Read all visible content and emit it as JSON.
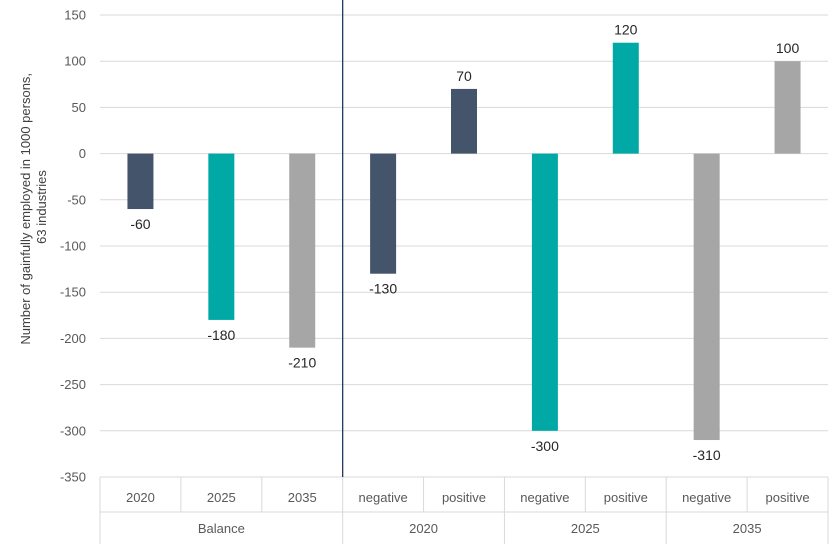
{
  "chart_data": {
    "type": "bar",
    "ylabel_lines": [
      "Number of gainfully employed in 1000 persons,",
      "63 industries"
    ],
    "ylim": [
      -350,
      150
    ],
    "ytick_step": 50,
    "grid": true,
    "legend": "none",
    "groups": [
      {
        "name": "Balance",
        "categories": [
          "2020",
          "2025",
          "2035"
        ],
        "values": [
          -60,
          -180,
          -210
        ],
        "colors": [
          "#44546A",
          "#00A9A6",
          "#A6A6A6"
        ]
      },
      {
        "name": "2020",
        "categories": [
          "negative",
          "positive"
        ],
        "values": [
          -130,
          70
        ],
        "colors": [
          "#44546A",
          "#44546A"
        ]
      },
      {
        "name": "2025",
        "categories": [
          "negative",
          "positive"
        ],
        "values": [
          -300,
          120
        ],
        "colors": [
          "#00A9A6",
          "#00A9A6"
        ]
      },
      {
        "name": "2035",
        "categories": [
          "negative",
          "positive"
        ],
        "values": [
          -310,
          100
        ],
        "colors": [
          "#A6A6A6",
          "#A6A6A6"
        ]
      }
    ],
    "colors": {
      "grid": "#D9D9D9",
      "separator": "#1F3A5F",
      "axis_text": "#595959"
    }
  }
}
